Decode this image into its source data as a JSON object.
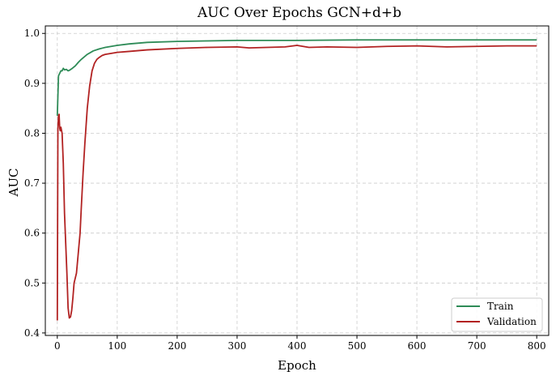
{
  "chart_data": {
    "type": "line",
    "title": "AUC Over Epochs GCN+d+b",
    "xlabel": "Epoch",
    "ylabel": "AUC",
    "xlim": [
      -20,
      820
    ],
    "ylim": [
      0.395,
      1.015
    ],
    "xticks": [
      0,
      100,
      200,
      300,
      400,
      500,
      600,
      700,
      800
    ],
    "yticks": [
      0.4,
      0.5,
      0.6,
      0.7,
      0.8,
      0.9,
      1.0
    ],
    "xtick_labels": [
      "0",
      "100",
      "200",
      "300",
      "400",
      "500",
      "600",
      "700",
      "800"
    ],
    "ytick_labels": [
      "0.4",
      "0.5",
      "0.6",
      "0.7",
      "0.8",
      "0.9",
      "1.0"
    ],
    "grid": true,
    "legend_position": "bottom-right",
    "series": [
      {
        "name": "Train",
        "color": "#2e8b57",
        "x": [
          0,
          2,
          4,
          6,
          8,
          10,
          12,
          15,
          18,
          20,
          25,
          30,
          35,
          40,
          45,
          50,
          60,
          70,
          80,
          100,
          120,
          150,
          200,
          250,
          300,
          400,
          500,
          600,
          700,
          750,
          800
        ],
        "y": [
          0.835,
          0.915,
          0.92,
          0.925,
          0.925,
          0.93,
          0.927,
          0.928,
          0.925,
          0.926,
          0.93,
          0.935,
          0.942,
          0.948,
          0.953,
          0.958,
          0.965,
          0.969,
          0.972,
          0.976,
          0.979,
          0.982,
          0.984,
          0.985,
          0.986,
          0.986,
          0.987,
          0.987,
          0.987,
          0.987,
          0.987
        ]
      },
      {
        "name": "Validation",
        "color": "#b22222",
        "x": [
          0,
          1,
          2,
          3,
          4,
          5,
          6,
          7,
          8,
          9,
          10,
          12,
          14,
          16,
          18,
          20,
          22,
          24,
          26,
          28,
          30,
          32,
          35,
          38,
          40,
          43,
          46,
          50,
          54,
          58,
          62,
          66,
          70,
          75,
          80,
          90,
          100,
          120,
          150,
          200,
          250,
          300,
          320,
          350,
          380,
          400,
          420,
          450,
          500,
          550,
          600,
          650,
          700,
          750,
          800
        ],
        "y": [
          0.425,
          0.81,
          0.835,
          0.838,
          0.81,
          0.805,
          0.812,
          0.806,
          0.8,
          0.77,
          0.74,
          0.64,
          0.58,
          0.52,
          0.45,
          0.43,
          0.432,
          0.445,
          0.47,
          0.5,
          0.51,
          0.52,
          0.56,
          0.6,
          0.65,
          0.72,
          0.78,
          0.85,
          0.895,
          0.925,
          0.94,
          0.948,
          0.952,
          0.956,
          0.958,
          0.96,
          0.962,
          0.964,
          0.967,
          0.97,
          0.972,
          0.973,
          0.971,
          0.972,
          0.973,
          0.976,
          0.972,
          0.973,
          0.972,
          0.974,
          0.975,
          0.973,
          0.974,
          0.975,
          0.975
        ]
      }
    ]
  }
}
